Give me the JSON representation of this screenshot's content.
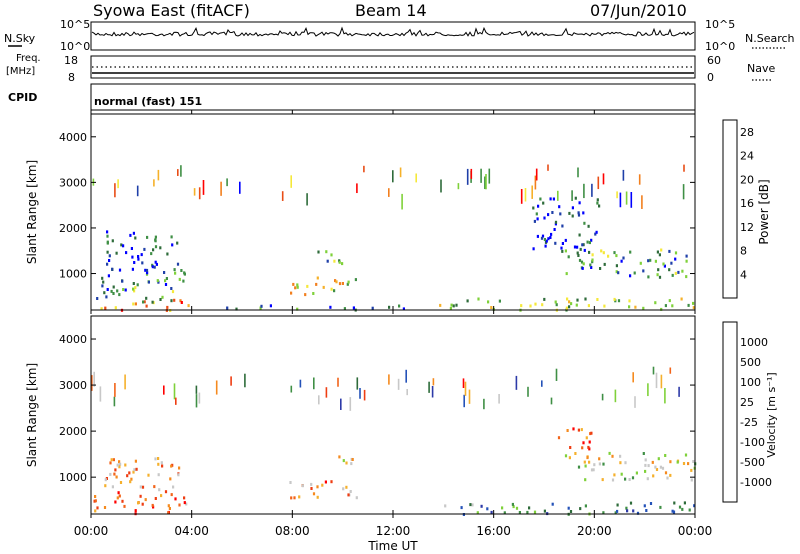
{
  "header": {
    "station": "Syowa East (fitACF)",
    "beam": "Beam 14",
    "date": "07/Jun/2010"
  },
  "top_panels": {
    "nsky_label": "N.Sky",
    "nsky_ticks": [
      "10^5",
      "10^0"
    ],
    "nsearch_label": "N.Search",
    "nsearch_ticks": [
      "10^5",
      "10^0"
    ],
    "freq_label_1": "Freq.",
    "freq_label_2": "[MHz]",
    "freq_ticks": [
      "18",
      "8"
    ],
    "nave_label": "Nave",
    "nave_ticks": [
      "60",
      "0"
    ],
    "cpid_label": "CPID",
    "cpid_value": "normal (fast) 151"
  },
  "colors": {
    "power_scale": [
      "#0000ff",
      "#1f3fa8",
      "#2e6b3a",
      "#3f8f45",
      "#7fd13a",
      "#f5e83a",
      "#f6b12a",
      "#f27f1e",
      "#e84d16",
      "#ff0000"
    ],
    "velocity_scale": [
      "#2d3aa8",
      "#2452b8",
      "#2e6b3a",
      "#3f8f45",
      "#7fd13a",
      "#c8c8c8",
      "#c8c8c8",
      "#f5b02c",
      "#f58a1f",
      "#f2641a",
      "#ee3d12",
      "#ff0000"
    ]
  },
  "chart_data": [
    {
      "type": "heatmap",
      "name": "power",
      "xlabel": "Time UT",
      "ylabel": "Slant Range [km]",
      "x_ticks": [
        "00:00",
        "04:00",
        "08:00",
        "12:00",
        "16:00",
        "20:00",
        "00:00"
      ],
      "y_ticks": [
        1000,
        2000,
        3000,
        4000
      ],
      "xlim_hours": [
        0,
        24
      ],
      "ylim_km": [
        200,
        4500
      ],
      "colorbar_label": "Power [dB]",
      "colorbar_ticks": [
        4,
        8,
        12,
        16,
        20,
        24,
        28
      ],
      "colorbar_range": [
        0,
        30
      ],
      "regions": [
        {
          "t0": 0.1,
          "t1": 3.9,
          "r0": 220,
          "r1": 450,
          "level": 0.75
        },
        {
          "t0": 0.2,
          "t1": 3.8,
          "r0": 400,
          "r1": 1100,
          "level": 0.3
        },
        {
          "t0": 0.5,
          "t1": 3.5,
          "r0": 1100,
          "r1": 2000,
          "level": 0.15
        },
        {
          "t0": 7.8,
          "t1": 10.6,
          "r0": 550,
          "r1": 950,
          "level": 0.55
        },
        {
          "t0": 8.8,
          "t1": 10.2,
          "r0": 1250,
          "r1": 1550,
          "level": 0.35
        },
        {
          "t0": 5.0,
          "t1": 12.5,
          "r0": 230,
          "r1": 330,
          "level": 0.2
        },
        {
          "t0": 13.8,
          "t1": 24.0,
          "r0": 220,
          "r1": 480,
          "level": 0.45
        },
        {
          "t0": 18.8,
          "t1": 24.0,
          "r0": 950,
          "r1": 1550,
          "level": 0.3
        },
        {
          "t0": 17.5,
          "t1": 20.2,
          "r0": 1500,
          "r1": 2700,
          "level": 0.12
        }
      ]
    },
    {
      "type": "heatmap",
      "name": "velocity",
      "xlabel": "Time UT",
      "ylabel": "Slant Range [km]",
      "x_ticks": [
        "00:00",
        "04:00",
        "08:00",
        "12:00",
        "16:00",
        "20:00",
        "00:00"
      ],
      "y_ticks": [
        1000,
        2000,
        3000,
        4000
      ],
      "xlim_hours": [
        0,
        24
      ],
      "ylim_km": [
        200,
        4500
      ],
      "colorbar_label": "Velocity [m s⁻¹]",
      "colorbar_ticks": [
        "1000",
        "500",
        "100",
        "25",
        "-25",
        "-100",
        "-500",
        "-1000"
      ],
      "regions": [
        {
          "t0": 0.1,
          "t1": 3.9,
          "r0": 220,
          "r1": 700,
          "level": 0.78
        },
        {
          "t0": 0.5,
          "t1": 3.5,
          "r0": 700,
          "r1": 1500,
          "level": 0.7
        },
        {
          "t0": 7.8,
          "t1": 10.6,
          "r0": 550,
          "r1": 950,
          "level": 0.72
        },
        {
          "t0": 9.0,
          "t1": 10.6,
          "r0": 1300,
          "r1": 1500,
          "level": 0.5
        },
        {
          "t0": 13.8,
          "t1": 24.0,
          "r0": 220,
          "r1": 480,
          "level": 0.25
        },
        {
          "t0": 18.8,
          "t1": 24.0,
          "r0": 950,
          "r1": 1550,
          "level": 0.5
        },
        {
          "t0": 18.5,
          "t1": 20.0,
          "r0": 1600,
          "r1": 2100,
          "level": 0.82
        }
      ]
    }
  ]
}
